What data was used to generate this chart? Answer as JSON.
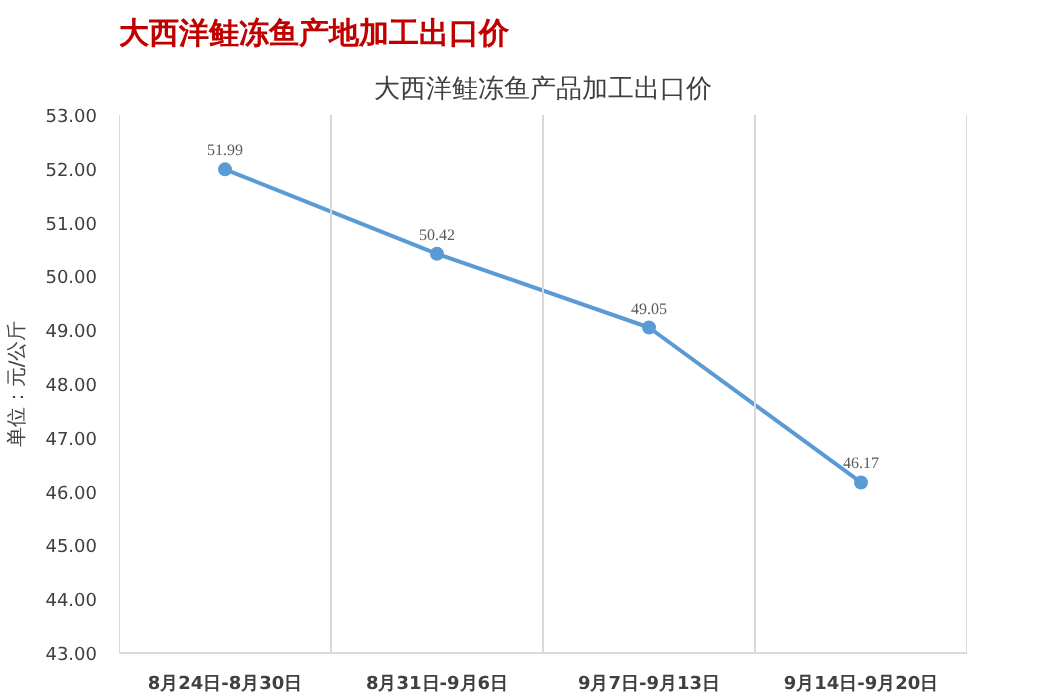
{
  "chart_data": {
    "type": "line",
    "title": "大西洋鲑冻鱼产地加工出口价",
    "subtitle": "大西洋鲑冻鱼产品加工出口价",
    "ylabel": "单位：元/公斤",
    "categories": [
      "8月24日-8月30日",
      "8月31日-9月6日",
      "9月7日-9月13日",
      "9月14日-9月20日"
    ],
    "series": [
      {
        "color": "#5b9bd5",
        "values": [
          51.99,
          50.42,
          49.05,
          46.17
        ]
      }
    ],
    "ylim": [
      43,
      53
    ],
    "yticks": [
      {
        "value": 43,
        "label": "43.00"
      },
      {
        "value": 44,
        "label": "44.00"
      },
      {
        "value": 45,
        "label": "45.00"
      },
      {
        "value": 46,
        "label": "46.00"
      },
      {
        "value": 47,
        "label": "47.00"
      },
      {
        "value": 48,
        "label": "48.00"
      },
      {
        "value": 49,
        "label": "49.00"
      },
      {
        "value": 50,
        "label": "50.00"
      },
      {
        "value": 51,
        "label": "51.00"
      },
      {
        "value": 52,
        "label": "52.00"
      },
      {
        "value": 53,
        "label": "53.00"
      }
    ],
    "grid": "x",
    "marker": "circle",
    "line_style": "solid",
    "data_labels": true
  }
}
